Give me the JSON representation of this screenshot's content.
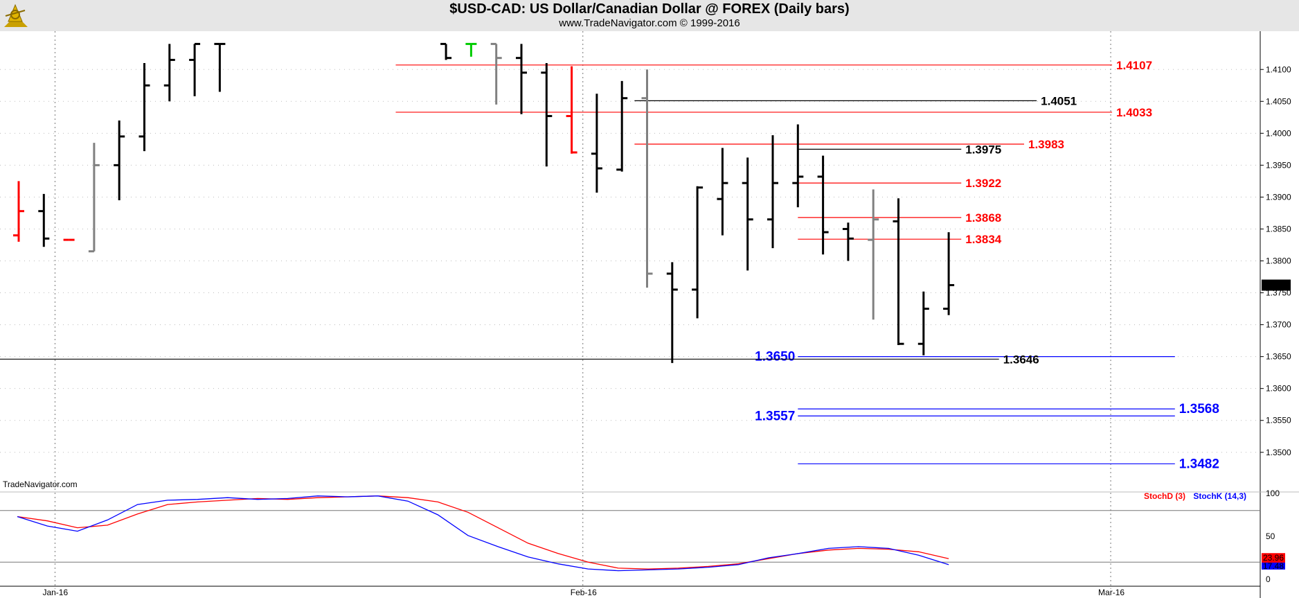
{
  "header": {
    "title": "$USD-CAD:  US Dollar/Canadian Dollar @ FOREX  (Daily bars)",
    "subtitle": "www.TradeNavigator.com © 1999-2016",
    "watermark": "TradeNavigator.com"
  },
  "colors": {
    "up_bar": "#000000",
    "down_bar": "#000000",
    "inside_bar": "#808080",
    "red_bar": "#ff0000",
    "resistance": "#ff0000",
    "support": "#0000ff",
    "black_line": "#000000",
    "stoch_d": "#ff0000",
    "stoch_k": "#0000ff"
  },
  "chart_data": [
    {
      "type": "ohlc",
      "ylim": [
        1.344,
        1.416
      ],
      "y_ticks": [
        "1.4100",
        "1.4050",
        "1.4000",
        "1.3950",
        "1.3900",
        "1.3850",
        "1.3800",
        "1.3750",
        "1.3700",
        "1.3650",
        "1.3600",
        "1.3550",
        "1.3500"
      ],
      "x_labels": [
        {
          "label": "Jan-16",
          "bar": 1.5
        },
        {
          "label": "Feb-16",
          "bar": 22.5
        },
        {
          "label": "Mar-16",
          "bar": 43.5
        }
      ],
      "last_price": "1.3762",
      "bars": [
        {
          "o": 1.384,
          "h": 1.3925,
          "l": 1.383,
          "c": 1.3878,
          "color": "red"
        },
        {
          "o": 1.3878,
          "h": 1.3905,
          "l": 1.3822,
          "c": 1.3835,
          "color": "black"
        },
        {
          "o": 1.3833,
          "h": 1.3833,
          "l": 1.3833,
          "c": 1.3833,
          "color": "red"
        },
        {
          "o": 1.3815,
          "h": 1.3985,
          "l": 1.3815,
          "c": 1.395,
          "color": "gray"
        },
        {
          "o": 1.395,
          "h": 1.402,
          "l": 1.3895,
          "c": 1.3995,
          "color": "black"
        },
        {
          "o": 1.3995,
          "h": 1.411,
          "l": 1.3972,
          "c": 1.4075,
          "color": "black"
        },
        {
          "o": 1.4075,
          "h": 1.414,
          "l": 1.405,
          "c": 1.4115,
          "color": "black"
        },
        {
          "o": 1.4115,
          "h": 1.414,
          "l": 1.4058,
          "c": 1.414,
          "color": "black"
        },
        {
          "o": 1.414,
          "h": 1.414,
          "l": 1.4065,
          "c": 1.414,
          "color": "black"
        },
        {
          "o": null,
          "h": null,
          "l": null,
          "c": null,
          "color": "hidden"
        },
        {
          "o": null,
          "h": null,
          "l": null,
          "c": null,
          "color": "hidden"
        },
        {
          "o": null,
          "h": null,
          "l": null,
          "c": null,
          "color": "hidden"
        },
        {
          "o": null,
          "h": null,
          "l": null,
          "c": null,
          "color": "hidden"
        },
        {
          "o": null,
          "h": null,
          "l": null,
          "c": null,
          "color": "hidden"
        },
        {
          "o": null,
          "h": null,
          "l": null,
          "c": null,
          "color": "hidden"
        },
        {
          "o": null,
          "h": null,
          "l": null,
          "c": null,
          "color": "hidden"
        },
        {
          "o": null,
          "h": null,
          "l": null,
          "c": null,
          "color": "hidden"
        },
        {
          "o": 1.414,
          "h": 1.414,
          "l": 1.4115,
          "c": 1.4118,
          "color": "black"
        },
        {
          "o": 1.414,
          "h": 1.414,
          "l": 1.412,
          "c": 1.414,
          "color": "green"
        },
        {
          "o": 1.414,
          "h": 1.414,
          "l": 1.4045,
          "c": 1.4118,
          "color": "gray"
        },
        {
          "o": 1.4118,
          "h": 1.414,
          "l": 1.403,
          "c": 1.4095,
          "color": "black"
        },
        {
          "o": 1.4095,
          "h": 1.411,
          "l": 1.3948,
          "c": 1.4027,
          "color": "black"
        },
        {
          "o": 1.4027,
          "h": 1.4105,
          "l": 1.3968,
          "c": 1.397,
          "color": "red"
        },
        {
          "o": 1.3968,
          "h": 1.4062,
          "l": 1.3907,
          "c": 1.3945,
          "color": "black"
        },
        {
          "o": 1.3943,
          "h": 1.4082,
          "l": 1.394,
          "c": 1.4055,
          "color": "black"
        },
        {
          "o": 1.4055,
          "h": 1.41,
          "l": 1.3758,
          "c": 1.378,
          "color": "gray"
        },
        {
          "o": 1.378,
          "h": 1.3798,
          "l": 1.364,
          "c": 1.3755,
          "color": "black"
        },
        {
          "o": 1.3755,
          "h": 1.3917,
          "l": 1.371,
          "c": 1.3915,
          "color": "black"
        },
        {
          "o": 1.3897,
          "h": 1.3977,
          "l": 1.384,
          "c": 1.3922,
          "color": "black"
        },
        {
          "o": 1.3922,
          "h": 1.3962,
          "l": 1.3785,
          "c": 1.3865,
          "color": "black"
        },
        {
          "o": 1.3865,
          "h": 1.3997,
          "l": 1.382,
          "c": 1.3922,
          "color": "black"
        },
        {
          "o": 1.3922,
          "h": 1.4014,
          "l": 1.3884,
          "c": 1.3932,
          "color": "black"
        },
        {
          "o": 1.3932,
          "h": 1.3965,
          "l": 1.381,
          "c": 1.3845,
          "color": "black"
        },
        {
          "o": 1.385,
          "h": 1.386,
          "l": 1.38,
          "c": 1.3835,
          "color": "black"
        },
        {
          "o": 1.3833,
          "h": 1.3912,
          "l": 1.3708,
          "c": 1.3865,
          "color": "gray"
        },
        {
          "o": 1.3862,
          "h": 1.3898,
          "l": 1.3668,
          "c": 1.367,
          "color": "black"
        },
        {
          "o": 1.367,
          "h": 1.3752,
          "l": 1.3652,
          "c": 1.3725,
          "color": "black"
        },
        {
          "o": 1.3725,
          "h": 1.3845,
          "l": 1.3715,
          "c": 1.3762,
          "color": "black"
        }
      ],
      "levels": [
        {
          "value": 1.4107,
          "label": "1.4107",
          "color": "red",
          "from_bar": 15,
          "to_bar": 43.5,
          "label_pos": "right"
        },
        {
          "value": 1.4051,
          "label": "1.4051",
          "color": "black",
          "from_bar": 24.5,
          "to_bar": 40.5,
          "label_pos": "right"
        },
        {
          "value": 1.4033,
          "label": "1.4033",
          "color": "red",
          "from_bar": 15,
          "to_bar": 43.5,
          "label_pos": "right"
        },
        {
          "value": 1.3983,
          "label": "1.3983",
          "color": "red",
          "from_bar": 24.5,
          "to_bar": 40,
          "label_pos": "right"
        },
        {
          "value": 1.3975,
          "label": "1.3975",
          "color": "black",
          "from_bar": 31,
          "to_bar": 37.5,
          "label_pos": "right"
        },
        {
          "value": 1.3922,
          "label": "1.3922",
          "color": "red",
          "from_bar": 31,
          "to_bar": 37.5,
          "label_pos": "right"
        },
        {
          "value": 1.3868,
          "label": "1.3868",
          "color": "red",
          "from_bar": 31,
          "to_bar": 37.5,
          "label_pos": "right"
        },
        {
          "value": 1.3834,
          "label": "1.3834",
          "color": "red",
          "from_bar": 31,
          "to_bar": 37.5,
          "label_pos": "right"
        },
        {
          "value": 1.365,
          "label": "1.3650",
          "color": "blue",
          "from_bar": 31,
          "to_bar": 46,
          "label_pos": "left"
        },
        {
          "value": 1.3646,
          "label": "1.3646",
          "color": "black",
          "from_bar": -1,
          "to_bar": 39,
          "label_pos": "right"
        },
        {
          "value": 1.3568,
          "label": "1.3568",
          "color": "blue",
          "from_bar": 31,
          "to_bar": 46,
          "label_pos": "right"
        },
        {
          "value": 1.3557,
          "label": "1.3557",
          "color": "blue",
          "from_bar": 31,
          "to_bar": 46,
          "label_pos": "left"
        },
        {
          "value": 1.3482,
          "label": "1.3482",
          "color": "blue",
          "from_bar": 31,
          "to_bar": 46,
          "label_pos": "right"
        }
      ]
    },
    {
      "type": "line",
      "title": "",
      "ylim": [
        0,
        100
      ],
      "y_ticks": [
        "100",
        "50",
        "0"
      ],
      "hlines": [
        80,
        20
      ],
      "legend": [
        "StochD (3)",
        "StochK (14,3)"
      ],
      "series": [
        {
          "name": "StochD (3)",
          "color": "red",
          "last_label": "23.96",
          "values": [
            73,
            68,
            60,
            63,
            76,
            87,
            90,
            92,
            94,
            93,
            95,
            96,
            97,
            95,
            90,
            78,
            60,
            42,
            30,
            20,
            13,
            12,
            13,
            15,
            18,
            24,
            30,
            34,
            36,
            35,
            32,
            24
          ]
        },
        {
          "name": "StochK (14,3)",
          "color": "blue",
          "last_label": "17.48",
          "values": [
            73,
            62,
            56,
            69,
            87,
            92,
            93,
            95,
            93,
            94,
            97,
            96,
            97,
            91,
            75,
            51,
            38,
            26,
            18,
            12,
            10,
            11,
            12,
            14,
            17,
            25,
            30,
            36,
            38,
            36,
            28,
            17
          ]
        }
      ]
    }
  ]
}
